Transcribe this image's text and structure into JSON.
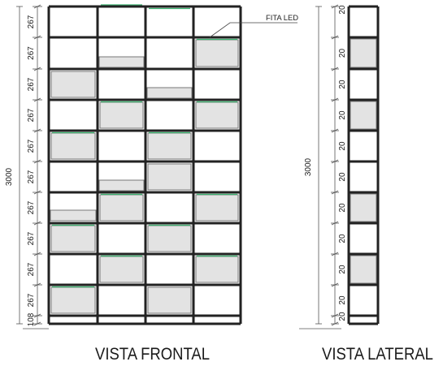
{
  "front_view": {
    "title": "VISTA FRONTAL",
    "total_height_label": "3000",
    "row_dimension_labels": [
      "267",
      "267",
      "267",
      "267",
      "267",
      "267",
      "267",
      "267",
      "267",
      "267",
      "108"
    ],
    "callout_label": "FITA LED"
  },
  "side_view": {
    "title": "VISTA LATERAL",
    "total_height_label": "3000",
    "row_dimension_labels": [
      "20",
      "20",
      "20",
      "20",
      "20",
      "20",
      "20",
      "20",
      "20",
      "20",
      "20"
    ]
  },
  "colors": {
    "frame": "#222222",
    "panel_fill": "#e3e3e3",
    "led_strip": "#3cb371",
    "dimension_line": "#555555"
  }
}
